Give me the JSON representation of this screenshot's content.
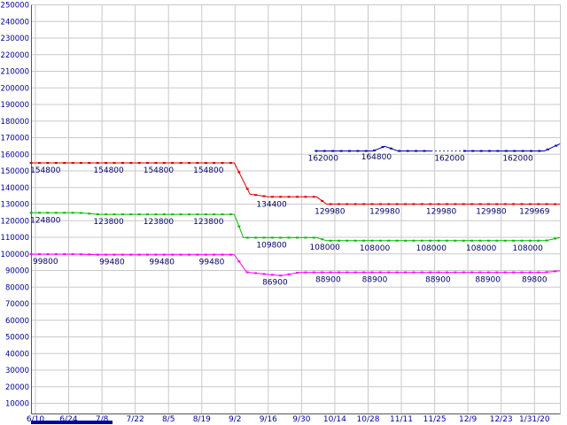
{
  "chart_data": {
    "type": "line",
    "title": "",
    "x_tick_labels": [
      "6/10",
      "6/24",
      "7/8",
      "7/22",
      "8/5",
      "8/19",
      "9/2",
      "9/16",
      "9/30",
      "10/14",
      "10/28",
      "11/11",
      "11/25",
      "12/9",
      "12/23",
      "1/31/20"
    ],
    "y_min": 10000,
    "y_max": 250000,
    "y_step": 10000,
    "grid": true,
    "legend": "none",
    "marker_step_ticks": 0.25,
    "colors": {
      "background": "#ffffff",
      "grid": "#c9c9c9",
      "axis": "#555555",
      "axis_label": "#000099",
      "value_label": "#000066",
      "scrollbar": "#0000a0"
    },
    "series": [
      {
        "name": "red",
        "color": "#dd0000",
        "segments": [
          {
            "dashed": false,
            "points": [
              [
                -0.13,
                154800
              ],
              [
                5.98,
                154800
              ],
              [
                6.45,
                136000
              ],
              [
                7.0,
                134400
              ],
              [
                8.45,
                134400
              ],
              [
                8.75,
                129980
              ],
              [
                15.3,
                129980
              ],
              [
                15.77,
                129969
              ]
            ]
          }
        ],
        "value_labels": [
          {
            "t": 0.3,
            "text": "154800"
          },
          {
            "t": 2.2,
            "text": "154800"
          },
          {
            "t": 3.7,
            "text": "154800"
          },
          {
            "t": 5.2,
            "text": "154800"
          },
          {
            "t": 7.1,
            "text": "134400"
          },
          {
            "t": 8.85,
            "text": "129980"
          },
          {
            "t": 10.5,
            "text": "129980"
          },
          {
            "t": 12.2,
            "text": "129980"
          },
          {
            "t": 13.7,
            "text": "129980"
          },
          {
            "t": 15.0,
            "text": "129969"
          }
        ]
      },
      {
        "name": "green",
        "color": "#00bb00",
        "segments": [
          {
            "dashed": false,
            "points": [
              [
                -0.13,
                124800
              ],
              [
                1.3,
                124800
              ],
              [
                1.9,
                123800
              ],
              [
                5.98,
                123800
              ],
              [
                6.25,
                109800
              ],
              [
                8.45,
                109800
              ],
              [
                8.75,
                108000
              ],
              [
                15.35,
                108000
              ],
              [
                15.77,
                109900
              ]
            ]
          }
        ],
        "value_labels": [
          {
            "t": 0.3,
            "text": "124800"
          },
          {
            "t": 2.2,
            "text": "123800"
          },
          {
            "t": 3.7,
            "text": "123800"
          },
          {
            "t": 5.2,
            "text": "123800"
          },
          {
            "t": 7.1,
            "text": "109800"
          },
          {
            "t": 8.7,
            "text": "108000"
          },
          {
            "t": 10.2,
            "text": "108000"
          },
          {
            "t": 11.9,
            "text": "108000"
          },
          {
            "t": 13.4,
            "text": "108000"
          },
          {
            "t": 14.8,
            "text": "108000"
          }
        ]
      },
      {
        "name": "magenta",
        "color": "#ff00ff",
        "segments": [
          {
            "dashed": false,
            "points": [
              [
                -0.13,
                99800
              ],
              [
                1.3,
                99800
              ],
              [
                1.9,
                99480
              ],
              [
                5.98,
                99480
              ],
              [
                6.35,
                89000
              ],
              [
                7.0,
                87600
              ],
              [
                7.4,
                86900
              ],
              [
                7.95,
                88900
              ],
              [
                15.3,
                88900
              ],
              [
                15.77,
                89800
              ]
            ]
          }
        ],
        "value_labels": [
          {
            "t": 0.3,
            "text": "99800"
          },
          {
            "t": 2.3,
            "text": "99480"
          },
          {
            "t": 3.8,
            "text": "99480"
          },
          {
            "t": 5.3,
            "text": "99480"
          },
          {
            "t": 7.2,
            "text": "86900"
          },
          {
            "t": 8.8,
            "text": "88900"
          },
          {
            "t": 10.2,
            "text": "88900"
          },
          {
            "t": 12.1,
            "text": "88900"
          },
          {
            "t": 13.6,
            "text": "88900"
          },
          {
            "t": 15.0,
            "text": "89800"
          }
        ]
      },
      {
        "name": "blue",
        "color": "#0000bb",
        "segments": [
          {
            "dashed": false,
            "points": [
              [
                8.44,
                162000
              ],
              [
                10.15,
                162000
              ],
              [
                10.5,
                164800
              ],
              [
                10.9,
                162000
              ],
              [
                11.9,
                162000
              ]
            ]
          },
          {
            "dashed": true,
            "points": [
              [
                11.9,
                162000
              ],
              [
                12.9,
                162000
              ]
            ]
          },
          {
            "dashed": false,
            "points": [
              [
                12.9,
                162000
              ],
              [
                15.3,
                162000
              ],
              [
                15.77,
                166300
              ]
            ]
          }
        ],
        "value_labels": [
          {
            "t": 8.65,
            "text": "162000"
          },
          {
            "t": 10.25,
            "text": "164800"
          },
          {
            "t": 12.45,
            "text": "162000"
          },
          {
            "t": 14.5,
            "text": "162000"
          }
        ]
      }
    ]
  }
}
